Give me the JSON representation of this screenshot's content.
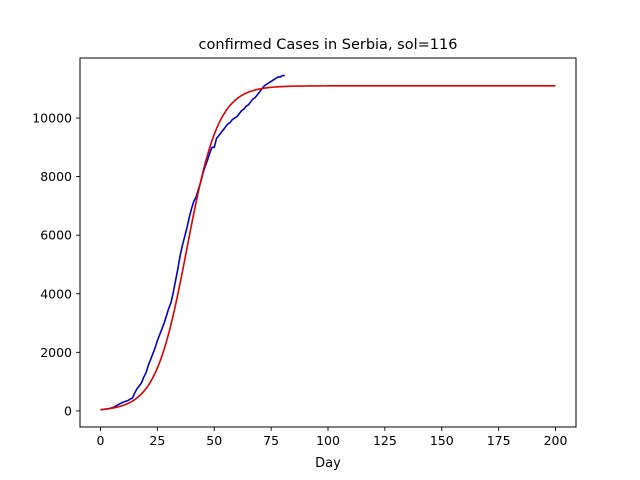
{
  "chart_data": {
    "type": "line",
    "title": "confirmed Cases in Serbia, sol=116",
    "xlabel": "Day",
    "ylabel": "",
    "xlim": [
      -9,
      209
    ],
    "ylim": [
      -550,
      12050
    ],
    "xticks": [
      0,
      25,
      50,
      75,
      100,
      125,
      150,
      175,
      200
    ],
    "yticks": [
      0,
      2000,
      4000,
      6000,
      8000,
      10000
    ],
    "grid": false,
    "series": [
      {
        "color": "#0000cc",
        "x": [
          0,
          2,
          4,
          6,
          8,
          10,
          12,
          13,
          14,
          15,
          16,
          17,
          18,
          19,
          20,
          21,
          22,
          23,
          24,
          25,
          26,
          27,
          28,
          29,
          30,
          31,
          32,
          33,
          34,
          35,
          36,
          37,
          38,
          39,
          40,
          41,
          42,
          43,
          44,
          45,
          46,
          47,
          48,
          49,
          50,
          51,
          52,
          53,
          54,
          55,
          56,
          57,
          58,
          59,
          60,
          61,
          62,
          63,
          64,
          65,
          66,
          67,
          68,
          69,
          70,
          71,
          72,
          73,
          74,
          75,
          76,
          77,
          78,
          79,
          80,
          81
        ],
        "y": [
          30,
          60,
          80,
          130,
          220,
          300,
          350,
          400,
          430,
          600,
          750,
          850,
          950,
          1150,
          1300,
          1550,
          1750,
          1950,
          2150,
          2400,
          2600,
          2800,
          3000,
          3250,
          3500,
          3700,
          4050,
          4450,
          4850,
          5300,
          5650,
          5950,
          6250,
          6600,
          6900,
          7150,
          7300,
          7550,
          7800,
          8100,
          8350,
          8550,
          8800,
          9000,
          9000,
          9300,
          9400,
          9500,
          9600,
          9700,
          9800,
          9850,
          9950,
          10000,
          10050,
          10150,
          10250,
          10300,
          10400,
          10450,
          10550,
          10650,
          10700,
          10800,
          10900,
          11000,
          11100,
          11150,
          11200,
          11250,
          11300,
          11350,
          11400,
          11400,
          11450,
          11450
        ]
      },
      {
        "color": "#dd0000",
        "model": "logistic",
        "K": 11100,
        "r": 0.145,
        "t0": 38,
        "x_range": [
          0,
          200
        ]
      }
    ]
  }
}
